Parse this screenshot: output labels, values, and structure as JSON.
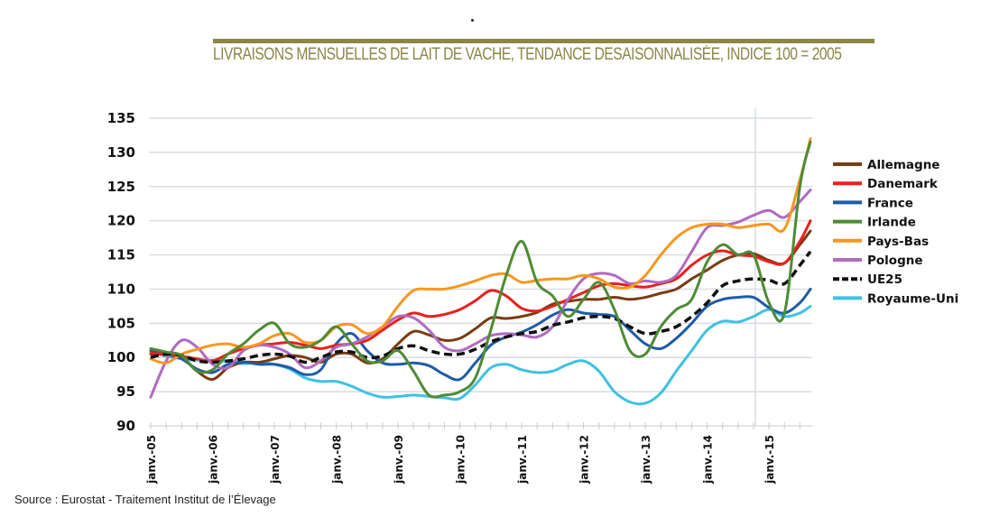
{
  "header": {
    "title": "LIVRAISONS MENSUELLES DE LAIT DE VACHE, TENDANCE DESAISONNALISÉE, INDICE 100 = 2005"
  },
  "footer": {
    "source": "Source : Eurostat - Traitement Institut de l’Élevage"
  },
  "chart_data": {
    "type": "line",
    "title": "LIVRAISONS MENSUELLES DE LAIT DE VACHE, TENDANCE DESAISONNALISÉE, INDICE 100 = 2005",
    "xlabel": "",
    "ylabel": "",
    "ylim": [
      90,
      135
    ],
    "yticks": [
      90,
      95,
      100,
      105,
      110,
      115,
      120,
      125,
      130,
      135
    ],
    "xlim": [
      2005.0,
      2015.67
    ],
    "xtick_labels": [
      "janv.-05",
      "janv.-06",
      "janv.-07",
      "janv.-08",
      "janv.-09",
      "janv.-10",
      "janv.-11",
      "janv.-12",
      "janv.-13",
      "janv.-14",
      "janv.-15"
    ],
    "xtick_values": [
      2005,
      2006,
      2007,
      2008,
      2009,
      2010,
      2011,
      2012,
      2013,
      2014,
      2015
    ],
    "grid": true,
    "legend_position": "right",
    "x": [
      2005.0,
      2005.25,
      2005.5,
      2005.75,
      2006.0,
      2006.25,
      2006.5,
      2006.75,
      2007.0,
      2007.25,
      2007.5,
      2007.75,
      2008.0,
      2008.25,
      2008.5,
      2008.75,
      2009.0,
      2009.25,
      2009.5,
      2009.75,
      2010.0,
      2010.25,
      2010.5,
      2010.75,
      2011.0,
      2011.25,
      2011.5,
      2011.75,
      2012.0,
      2012.25,
      2012.5,
      2012.75,
      2013.0,
      2013.25,
      2013.5,
      2013.75,
      2014.0,
      2014.25,
      2014.5,
      2014.75,
      2015.0,
      2015.25,
      2015.5,
      2015.67
    ],
    "series": [
      {
        "name": "Allemagne",
        "color": "#7a3b12",
        "dashed": false,
        "values": [
          100.5,
          100.4,
          100.0,
          98.0,
          96.8,
          98.5,
          99.3,
          99.3,
          99.8,
          100.3,
          100.0,
          99.3,
          100.5,
          100.5,
          99.2,
          99.8,
          102.0,
          103.8,
          103.3,
          102.5,
          102.8,
          104.2,
          105.8,
          105.7,
          106.0,
          106.6,
          107.8,
          108.2,
          108.5,
          108.5,
          108.8,
          108.5,
          108.8,
          109.4,
          110.0,
          111.5,
          112.8,
          114.2,
          115.0,
          115.2,
          114.2,
          113.8,
          116.5,
          118.5
        ]
      },
      {
        "name": "Danemark",
        "color": "#e8201c",
        "dashed": false,
        "values": [
          100.6,
          100.5,
          100.2,
          99.8,
          99.5,
          100.5,
          101.3,
          101.8,
          102.0,
          102.2,
          101.8,
          101.3,
          101.8,
          102.0,
          102.5,
          104.0,
          105.5,
          106.5,
          106.0,
          106.3,
          107.0,
          108.3,
          109.8,
          109.0,
          107.2,
          106.8,
          107.5,
          108.5,
          109.5,
          110.5,
          110.8,
          110.5,
          110.3,
          110.8,
          111.5,
          113.5,
          115.0,
          115.6,
          115.0,
          114.8,
          114.0,
          113.8,
          117.0,
          120.0
        ]
      },
      {
        "name": "France",
        "color": "#1f5ba8",
        "dashed": false,
        "values": [
          101.0,
          100.5,
          99.8,
          98.3,
          97.8,
          99.0,
          99.3,
          99.0,
          99.0,
          98.5,
          97.5,
          98.2,
          102.0,
          103.5,
          101.0,
          99.2,
          99.0,
          99.2,
          98.8,
          97.5,
          96.8,
          99.2,
          101.8,
          103.0,
          103.7,
          104.8,
          106.2,
          107.0,
          106.5,
          106.3,
          106.0,
          104.0,
          102.0,
          101.3,
          102.8,
          105.0,
          107.5,
          108.5,
          108.8,
          108.8,
          107.3,
          106.5,
          108.0,
          110.0
        ]
      },
      {
        "name": "Irlande",
        "color": "#4e8b35",
        "dashed": false,
        "values": [
          101.3,
          100.8,
          100.3,
          98.0,
          98.2,
          100.5,
          102.0,
          104.0,
          105.0,
          102.0,
          101.5,
          102.5,
          104.5,
          102.0,
          99.5,
          99.5,
          101.0,
          98.0,
          94.5,
          94.5,
          95.0,
          97.0,
          104.0,
          112.0,
          117.0,
          111.0,
          109.0,
          106.0,
          108.5,
          111.0,
          107.0,
          101.0,
          100.5,
          104.5,
          107.0,
          108.5,
          114.0,
          116.5,
          115.0,
          115.0,
          108.0,
          106.5,
          125.0,
          131.5
        ]
      },
      {
        "name": "Pays-Bas",
        "color": "#f7971e",
        "dashed": false,
        "values": [
          99.8,
          99.2,
          100.5,
          101.2,
          101.8,
          102.0,
          101.5,
          102.0,
          103.2,
          103.5,
          102.2,
          102.5,
          104.5,
          104.8,
          103.5,
          104.5,
          107.5,
          109.8,
          110.0,
          110.0,
          110.5,
          111.2,
          112.0,
          112.2,
          111.0,
          111.3,
          111.5,
          111.5,
          112.0,
          111.5,
          110.3,
          110.3,
          112.0,
          115.0,
          117.5,
          119.0,
          119.5,
          119.5,
          119.0,
          119.3,
          119.5,
          118.8,
          126.0,
          132.0
        ]
      },
      {
        "name": "Pologne",
        "color": "#b06bc0",
        "dashed": false,
        "values": [
          94.2,
          99.5,
          102.5,
          101.5,
          99.0,
          98.5,
          101.0,
          101.8,
          101.5,
          100.5,
          98.5,
          99.5,
          101.5,
          102.0,
          103.0,
          104.5,
          106.0,
          105.8,
          104.0,
          101.5,
          101.0,
          102.0,
          103.2,
          103.5,
          103.3,
          103.0,
          104.5,
          108.5,
          111.5,
          112.3,
          112.0,
          110.8,
          111.2,
          111.0,
          112.0,
          115.5,
          119.0,
          119.3,
          119.8,
          120.8,
          121.5,
          120.5,
          122.8,
          124.5
        ]
      },
      {
        "name": "UE25",
        "color": "#111111",
        "dashed": true,
        "values": [
          100.0,
          100.5,
          100.3,
          99.5,
          99.3,
          99.5,
          99.8,
          100.3,
          100.5,
          100.2,
          99.3,
          100.0,
          100.8,
          100.8,
          100.0,
          100.2,
          101.3,
          101.7,
          101.0,
          100.5,
          100.5,
          101.2,
          102.3,
          103.0,
          103.5,
          103.8,
          104.7,
          105.2,
          105.8,
          106.0,
          105.7,
          104.5,
          103.5,
          103.8,
          104.5,
          106.0,
          108.0,
          110.5,
          111.2,
          111.5,
          111.3,
          110.8,
          113.5,
          115.5
        ]
      },
      {
        "name": "Royaume-Uni",
        "color": "#3fc1e3",
        "dashed": false,
        "values": [
          101.0,
          100.2,
          99.8,
          99.6,
          99.6,
          99.4,
          99.1,
          99.3,
          99.0,
          98.3,
          97.0,
          96.5,
          96.5,
          95.8,
          94.8,
          94.2,
          94.3,
          94.5,
          94.3,
          94.1,
          94.0,
          96.0,
          98.5,
          99.0,
          98.2,
          97.8,
          98.0,
          99.0,
          99.5,
          98.0,
          95.0,
          93.5,
          93.3,
          94.8,
          98.0,
          101.0,
          104.0,
          105.3,
          105.2,
          106.0,
          107.0,
          106.0,
          106.5,
          107.5
        ]
      }
    ]
  }
}
